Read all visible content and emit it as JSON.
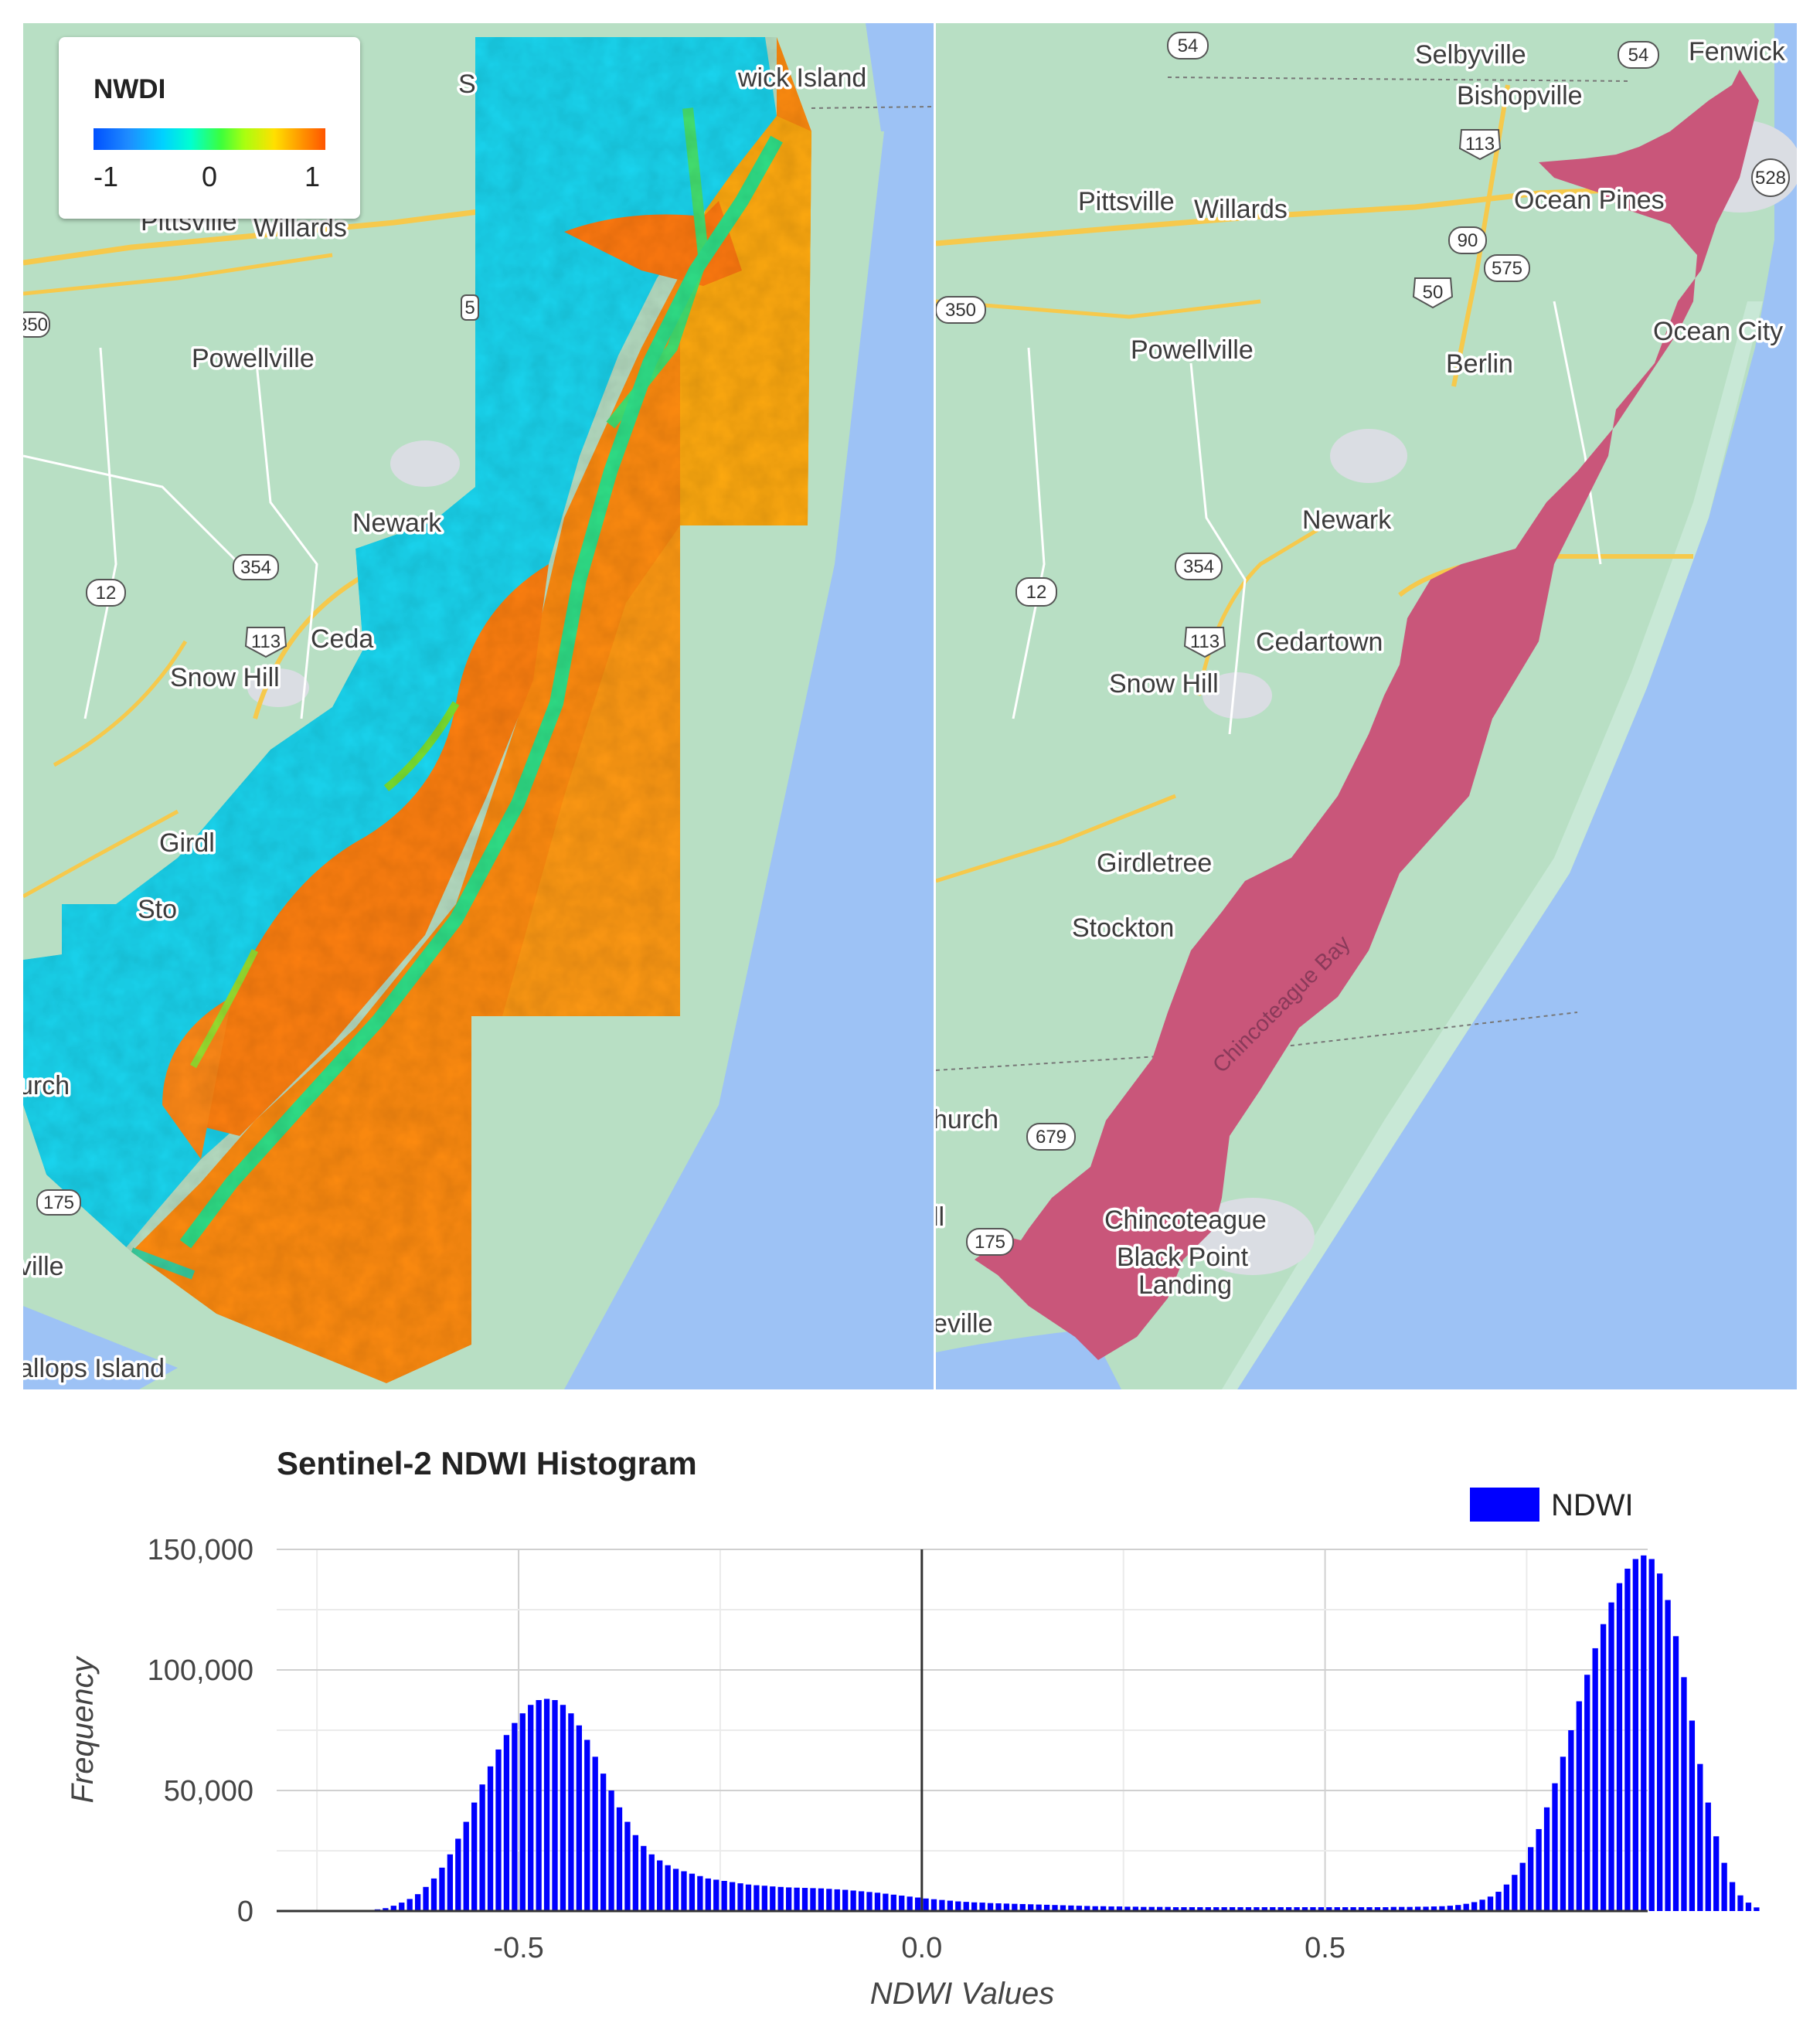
{
  "left_map": {
    "legend": {
      "title": "NWDI",
      "ticks": [
        "-1",
        "0",
        "1"
      ]
    },
    "places": [
      "wick Island",
      "Pittsville",
      "Willards",
      "Powellville",
      "Newark",
      "Ceda",
      "Snow Hill",
      "Girdl",
      "Sto",
      "urch",
      "ville",
      "allops Island",
      "S"
    ],
    "shields": [
      "350",
      "354",
      "12",
      "113",
      "175",
      "5"
    ]
  },
  "right_map": {
    "places": [
      "Selbyville",
      "Fenwick",
      "Bishopville",
      "Pittsville",
      "Willards",
      "Ocean Pines",
      "Ocean City",
      "Powellville",
      "Berlin",
      "Newark",
      "Cedartown",
      "Snow Hill",
      "Girdletree",
      "Stockton",
      "hurch",
      "Chincoteague",
      "Black Point",
      "Landing",
      "eville",
      "ll"
    ],
    "bay_label": "Chincoteague Bay",
    "shields": [
      "54",
      "54",
      "113",
      "528",
      "90",
      "575",
      "50",
      "350",
      "354",
      "12",
      "113",
      "679",
      "175"
    ]
  },
  "chart_data": {
    "type": "bar",
    "title": "Sentinel-2 NDWI Histogram",
    "xlabel": "NDWI Values",
    "ylabel": "Frequency",
    "xlim": [
      -0.8,
      0.9
    ],
    "ylim": [
      0,
      150000
    ],
    "x_ticks": [
      "-0.5",
      "0.0",
      "0.5"
    ],
    "y_ticks": [
      "0",
      "50,000",
      "100,000",
      "150,000"
    ],
    "legend": "top-right",
    "series": [
      {
        "name": "NDWI",
        "color": "#0000ff"
      }
    ],
    "bin_width": 0.01,
    "bin_start": -0.685,
    "values": [
      300,
      700,
      1200,
      2200,
      3500,
      5000,
      7000,
      10000,
      13500,
      18000,
      23500,
      30000,
      37000,
      45000,
      52500,
      60000,
      67000,
      73000,
      78000,
      82000,
      85500,
      87500,
      88000,
      87500,
      85500,
      82000,
      77000,
      71000,
      64000,
      57000,
      50000,
      43000,
      37000,
      31500,
      27000,
      23500,
      21000,
      19000,
      17500,
      16500,
      15500,
      14500,
      13500,
      13000,
      12500,
      12000,
      11500,
      11000,
      10700,
      10500,
      10200,
      10000,
      9800,
      9700,
      9600,
      9500,
      9400,
      9200,
      9000,
      8800,
      8500,
      8200,
      7900,
      7600,
      7200,
      6800,
      6400,
      6000,
      5600,
      5200,
      4900,
      4600,
      4300,
      4000,
      3800,
      3600,
      3500,
      3300,
      3200,
      3100,
      3000,
      2900,
      2800,
      2700,
      2600,
      2500,
      2400,
      2300,
      2200,
      2100,
      2000,
      2000,
      1900,
      1900,
      1800,
      1800,
      1700,
      1700,
      1700,
      1700,
      1600,
      1600,
      1600,
      1600,
      1600,
      1600,
      1600,
      1600,
      1600,
      1600,
      1600,
      1600,
      1600,
      1600,
      1600,
      1600,
      1600,
      1600,
      1600,
      1600,
      1600,
      1600,
      1600,
      1600,
      1600,
      1600,
      1600,
      1700,
      1700,
      1700,
      1800,
      1800,
      1900,
      2000,
      2200,
      2500,
      3000,
      3700,
      4700,
      6000,
      8000,
      11000,
      15000,
      20000,
      26500,
      34000,
      43000,
      53000,
      64000,
      75000,
      87000,
      98000,
      109000,
      119000,
      128000,
      136000,
      142000,
      146000,
      147500,
      146000,
      140000,
      129000,
      114000,
      97000,
      79000,
      61000,
      45000,
      31000,
      20000,
      12000,
      6500,
      3500,
      1500
    ]
  }
}
